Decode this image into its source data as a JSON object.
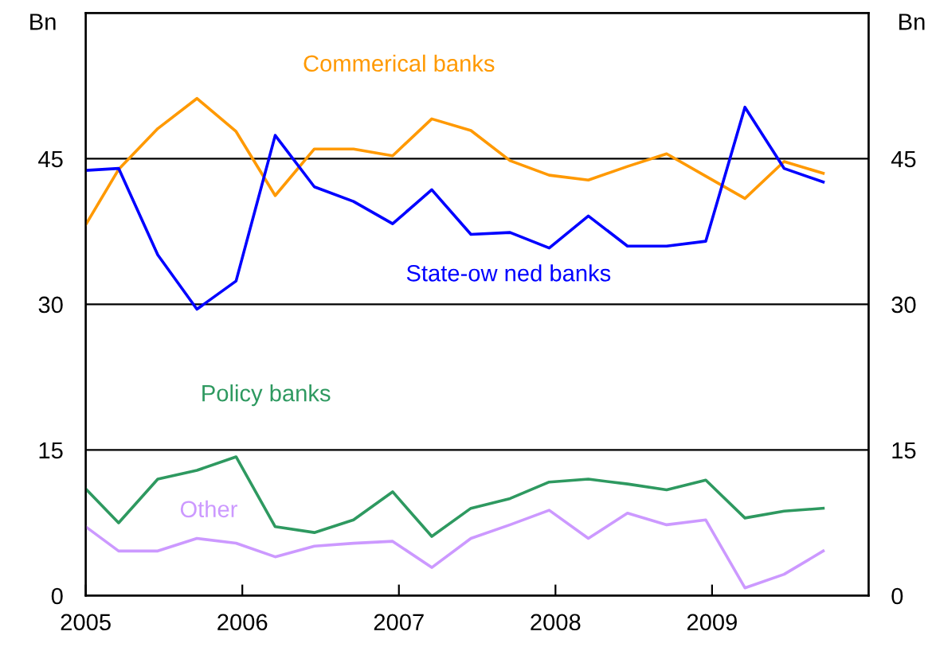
{
  "chart_data": {
    "type": "line",
    "ylabel": "Bn",
    "y2label": "Bn",
    "x": [
      2005.0,
      2005.21,
      2005.46,
      2005.71,
      2005.96,
      2006.21,
      2006.46,
      2006.71,
      2006.96,
      2007.21,
      2007.46,
      2007.71,
      2007.96,
      2008.21,
      2008.46,
      2008.71,
      2008.96,
      2009.21,
      2009.46,
      2009.71
    ],
    "series": [
      {
        "name": "Commerical banks",
        "color": "#ff9900",
        "values": [
          38.2,
          43.9,
          48.1,
          51.2,
          47.8,
          41.2,
          46.0,
          46.0,
          45.3,
          49.1,
          47.9,
          44.8,
          43.3,
          42.8,
          44.2,
          45.5,
          43.2,
          40.9,
          44.7,
          43.5
        ]
      },
      {
        "name": "State-ow ned banks",
        "color": "#0000ff",
        "values": [
          43.8,
          44.0,
          35.1,
          29.5,
          32.4,
          47.4,
          42.1,
          40.6,
          38.3,
          41.8,
          37.2,
          37.4,
          35.8,
          39.1,
          36.0,
          36.0,
          36.5,
          50.3,
          44.0,
          42.6
        ]
      },
      {
        "name": "Policy banks",
        "color": "#2e9960",
        "values": [
          11.0,
          7.5,
          12.0,
          12.9,
          14.3,
          7.1,
          6.5,
          7.8,
          10.7,
          6.1,
          9.0,
          10.0,
          11.7,
          12.0,
          11.5,
          10.9,
          11.9,
          8.0,
          8.7,
          9.0
        ]
      },
      {
        "name": "Other",
        "color": "#cc99ff",
        "values": [
          7.1,
          4.6,
          4.6,
          5.9,
          5.4,
          4.0,
          5.1,
          5.4,
          5.6,
          2.9,
          5.9,
          7.3,
          8.8,
          5.9,
          8.5,
          7.3,
          7.8,
          0.8,
          2.2,
          4.6
        ]
      }
    ],
    "xlim": [
      2005,
      2010
    ],
    "xticks": [
      2005,
      2006,
      2007,
      2008,
      2009
    ],
    "ylim": [
      0,
      60
    ],
    "yticks": [
      0,
      15,
      30,
      45
    ],
    "y2lim": [
      0,
      60
    ],
    "y2ticks": [
      0,
      15,
      30,
      45
    ],
    "grid": "y",
    "legend": false,
    "marker": "none",
    "line_style": "solid"
  }
}
